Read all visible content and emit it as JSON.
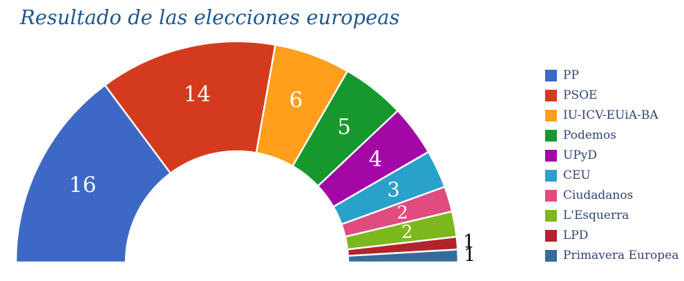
{
  "chart_data": {
    "type": "pie",
    "subtype": "half-donut",
    "title": "Resultado de las elecciones europeas",
    "total_seats": 54,
    "unit": "seats",
    "legend_position": "right",
    "grid": false,
    "categories": [
      "PP",
      "PSOE",
      "IU-ICV-EUiA-BA",
      "Podemos",
      "UPyD",
      "CEU",
      "Ciudadanos",
      "L'Esquerra",
      "LPD",
      "Primavera Europea"
    ],
    "values": [
      16,
      14,
      6,
      5,
      4,
      3,
      2,
      2,
      1,
      1
    ],
    "colors": [
      "#3D68C5",
      "#D43A1D",
      "#FF9F1C",
      "#17982F",
      "#A307A5",
      "#2AA1CB",
      "#E04B80",
      "#7DB71E",
      "#B4232B",
      "#366B9C"
    ],
    "data_labels": {
      "inside_color": "#FFFFFF",
      "outside_color": "#000000",
      "outside_values": [
        1,
        1
      ]
    }
  },
  "styles": {
    "title_color": "#1B5890",
    "legend_text_color": "#2F4377",
    "background_color": "#FFFFFF",
    "separator_color": "#FFFFFF"
  }
}
